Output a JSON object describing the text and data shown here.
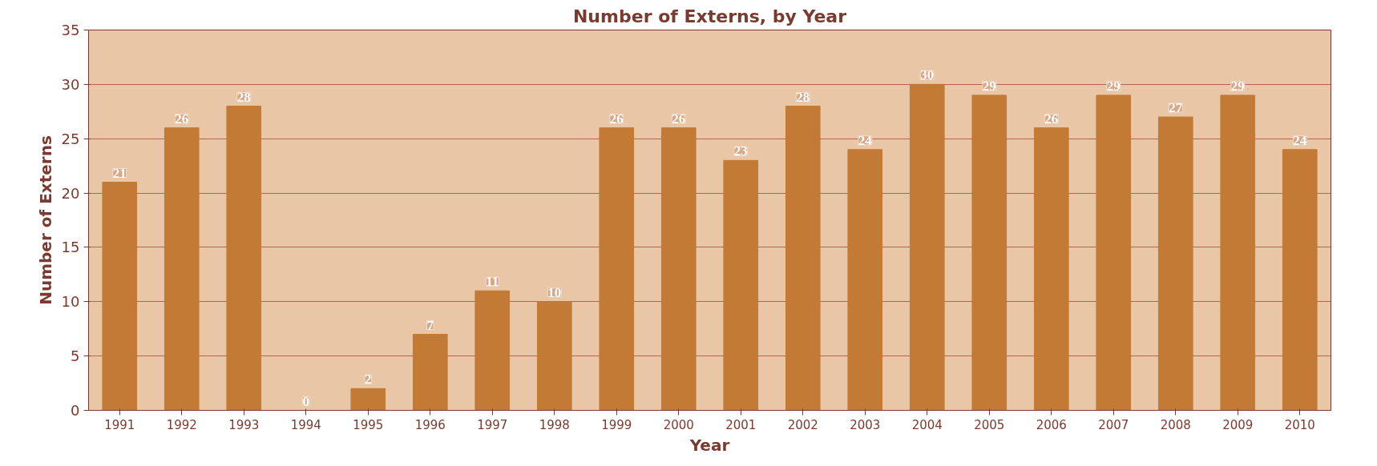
{
  "chart_data": {
    "type": "bar",
    "title": "Number of Externs, by Year",
    "xlabel": "Year",
    "ylabel": "Number of Externs",
    "categories": [
      "1991",
      "1992",
      "1993",
      "1994",
      "1995",
      "1996",
      "1997",
      "1998",
      "1999",
      "2000",
      "2001",
      "2002",
      "2003",
      "2004",
      "2005",
      "2006",
      "2007",
      "2008",
      "2009",
      "2010"
    ],
    "values": [
      21,
      26,
      28,
      0,
      2,
      7,
      11,
      10,
      26,
      26,
      23,
      28,
      24,
      30,
      29,
      26,
      29,
      27,
      29,
      24
    ],
    "color": "#c27a34",
    "ylim": [
      0,
      35
    ],
    "yticks": [
      0,
      5,
      10,
      15,
      20,
      25,
      30,
      35
    ],
    "grid": "y",
    "data_labels": true
  }
}
